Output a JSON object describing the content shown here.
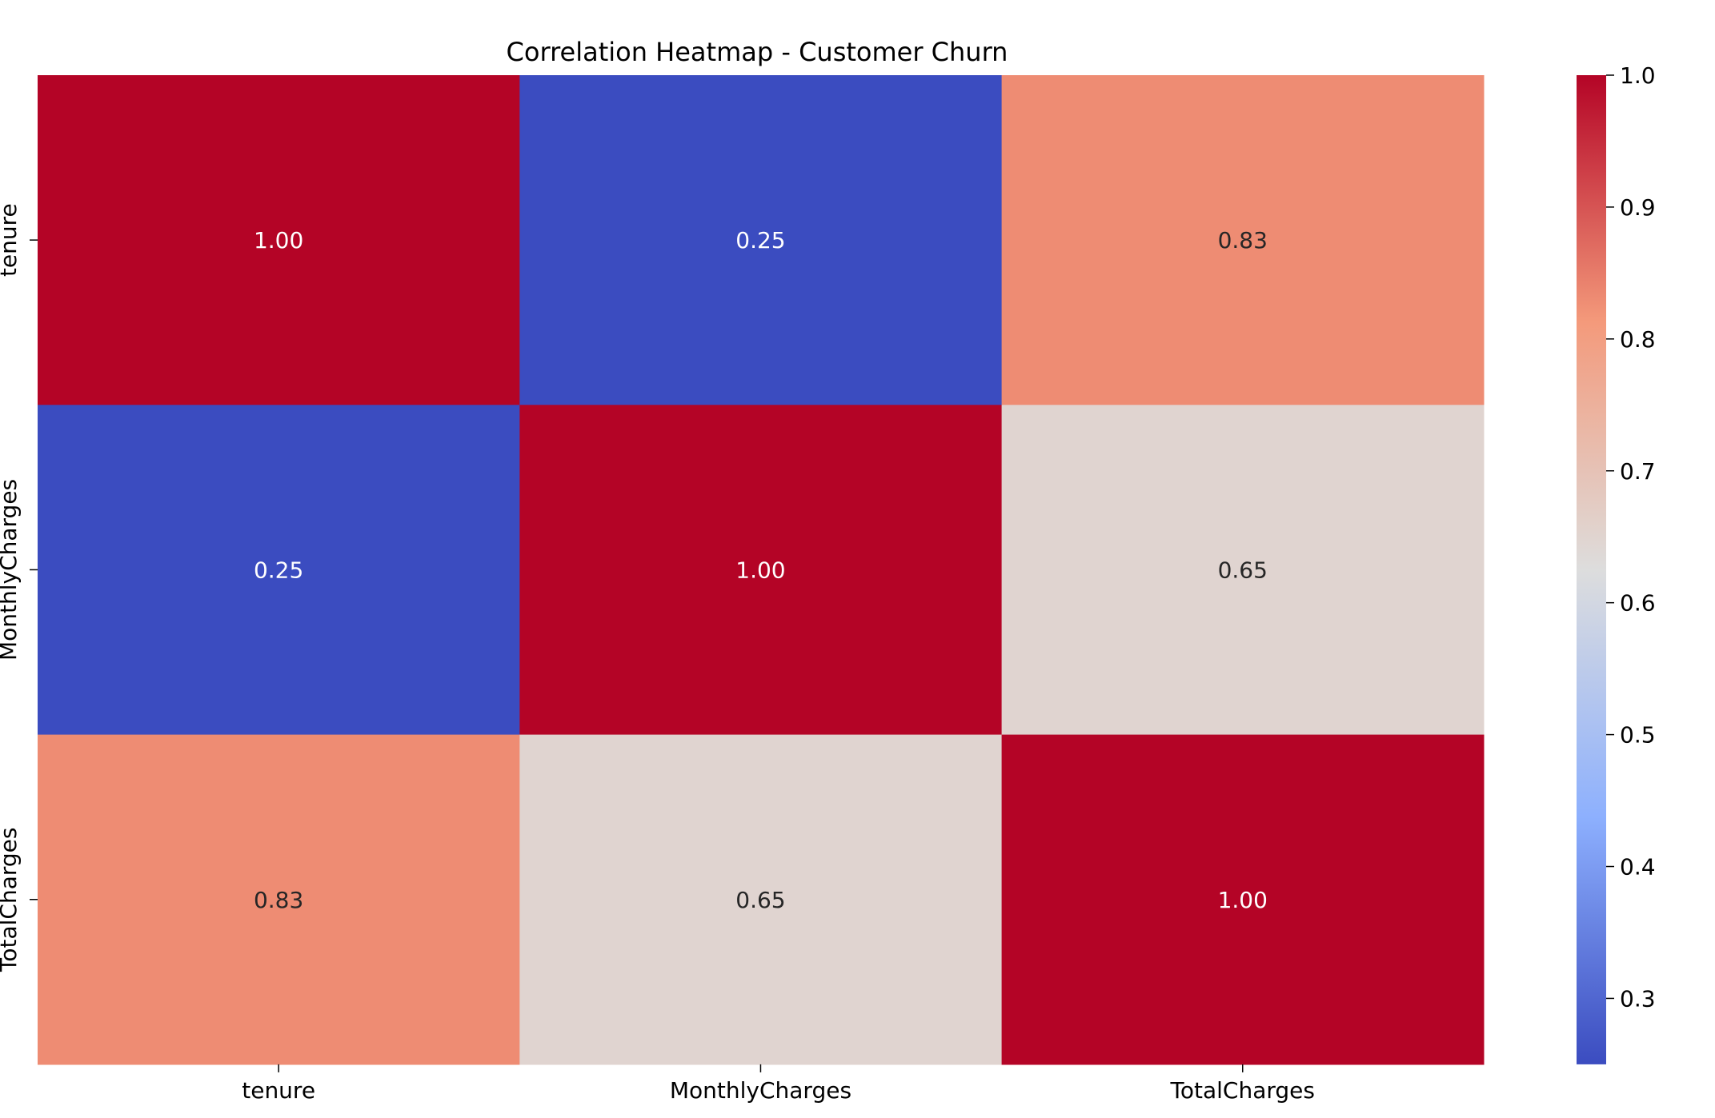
{
  "chart_data": {
    "type": "heatmap",
    "title": "Correlation Heatmap - Customer Churn",
    "rows": [
      "tenure",
      "MonthlyCharges",
      "TotalCharges"
    ],
    "columns": [
      "tenure",
      "MonthlyCharges",
      "TotalCharges"
    ],
    "values": [
      [
        1.0,
        0.25,
        0.83
      ],
      [
        0.25,
        1.0,
        0.65
      ],
      [
        0.83,
        0.65,
        1.0
      ]
    ],
    "value_format": "0.00",
    "colormap": "coolwarm",
    "colorbar": {
      "min": 0.25,
      "max": 1.0,
      "ticks": [
        0.3,
        0.4,
        0.5,
        0.6,
        0.7,
        0.8,
        0.9,
        1.0
      ],
      "tick_labels": [
        "0.3",
        "0.4",
        "0.5",
        "0.6",
        "0.7",
        "0.8",
        "0.9",
        "1.0"
      ],
      "placement": "right"
    },
    "colors": {
      "high": "#b40426",
      "low": "#3b4cc0",
      "mid": "#dddddd",
      "cell_1_00": "#b40426",
      "cell_0_83": "#f29274",
      "cell_0_65": "#e5d8d1",
      "cell_0_25": "#3b4cc0",
      "annotation_light": "#ffffff",
      "annotation_dark": "#262626"
    }
  }
}
